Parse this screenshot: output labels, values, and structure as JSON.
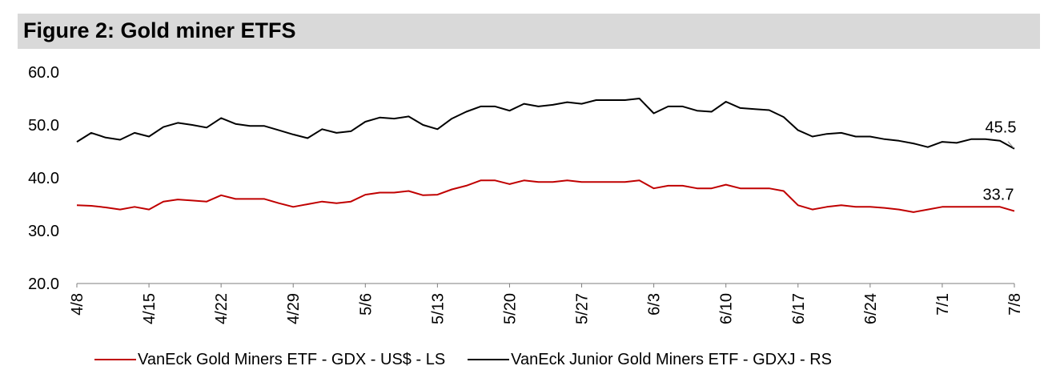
{
  "header": {
    "title": "Figure 2: Gold miner ETFS"
  },
  "chart_data": {
    "type": "line",
    "title": "Figure 2: Gold miner ETFS",
    "ylim": [
      20,
      60
    ],
    "yticks": [
      "60.0",
      "50.0",
      "40.0",
      "30.0",
      "20.0"
    ],
    "xticks": [
      "4/8",
      "4/15",
      "4/22",
      "4/29",
      "5/6",
      "5/13",
      "5/20",
      "5/27",
      "6/3",
      "6/10",
      "6/17",
      "6/24",
      "7/1",
      "7/8"
    ],
    "x": [
      "4/8",
      "4/9",
      "4/10",
      "4/11",
      "4/12",
      "4/15",
      "4/16",
      "4/17",
      "4/18",
      "4/19",
      "4/22",
      "4/23",
      "4/24",
      "4/25",
      "4/26",
      "4/29",
      "4/30",
      "5/1",
      "5/2",
      "5/3",
      "5/6",
      "5/7",
      "5/8",
      "5/9",
      "5/10",
      "5/13",
      "5/14",
      "5/15",
      "5/16",
      "5/17",
      "5/20",
      "5/21",
      "5/22",
      "5/23",
      "5/24",
      "5/27",
      "5/28",
      "5/29",
      "5/30",
      "5/31",
      "6/3",
      "6/4",
      "6/5",
      "6/6",
      "6/7",
      "6/10",
      "6/11",
      "6/12",
      "6/13",
      "6/14",
      "6/17",
      "6/18",
      "6/19",
      "6/20",
      "6/21",
      "6/24",
      "6/25",
      "6/26",
      "6/27",
      "6/28",
      "7/1",
      "7/2",
      "7/3",
      "7/4",
      "7/5",
      "7/8"
    ],
    "series": [
      {
        "name": "VanEck Gold Miners ETF  - GDX  - US$ - LS",
        "color": "#c00000",
        "y": [
          34.8,
          34.7,
          34.4,
          34.0,
          34.5,
          34.0,
          35.5,
          35.9,
          35.7,
          35.5,
          36.7,
          36.0,
          36.0,
          36.0,
          35.2,
          34.5,
          35.0,
          35.5,
          35.2,
          35.5,
          36.8,
          37.2,
          37.2,
          37.5,
          36.7,
          36.8,
          37.8,
          38.5,
          39.5,
          39.5,
          38.8,
          39.5,
          39.2,
          39.2,
          39.5,
          39.2,
          39.2,
          39.2,
          39.2,
          39.5,
          38.0,
          38.5,
          38.5,
          38.0,
          38.0,
          38.7,
          38.0,
          38.0,
          38.0,
          37.5,
          34.8,
          34.0,
          34.5,
          34.8,
          34.5,
          34.5,
          34.3,
          34.0,
          33.5,
          34.0,
          34.5,
          34.5,
          34.5,
          34.5,
          34.5,
          33.7
        ],
        "end_label": "33.7"
      },
      {
        "name": "VanEck Junior Gold Miners ETF - GDXJ - RS",
        "color": "#000000",
        "y": [
          46.8,
          48.5,
          47.6,
          47.2,
          48.5,
          47.8,
          49.6,
          50.4,
          50.0,
          49.5,
          51.3,
          50.2,
          49.8,
          49.8,
          49.0,
          48.2,
          47.5,
          49.2,
          48.5,
          48.8,
          50.6,
          51.4,
          51.2,
          51.6,
          50.0,
          49.2,
          51.2,
          52.5,
          53.5,
          53.5,
          52.7,
          54.0,
          53.5,
          53.8,
          54.3,
          54.0,
          54.7,
          54.7,
          54.7,
          55.0,
          52.2,
          53.5,
          53.5,
          52.7,
          52.5,
          54.4,
          53.2,
          53.0,
          52.8,
          51.5,
          49.0,
          47.8,
          48.3,
          48.5,
          47.8,
          47.8,
          47.3,
          47.0,
          46.5,
          45.8,
          46.8,
          46.6,
          47.3,
          47.3,
          47.0,
          45.5
        ],
        "end_label": "45.5"
      }
    ],
    "grid": false,
    "legend_position": "bottom"
  }
}
